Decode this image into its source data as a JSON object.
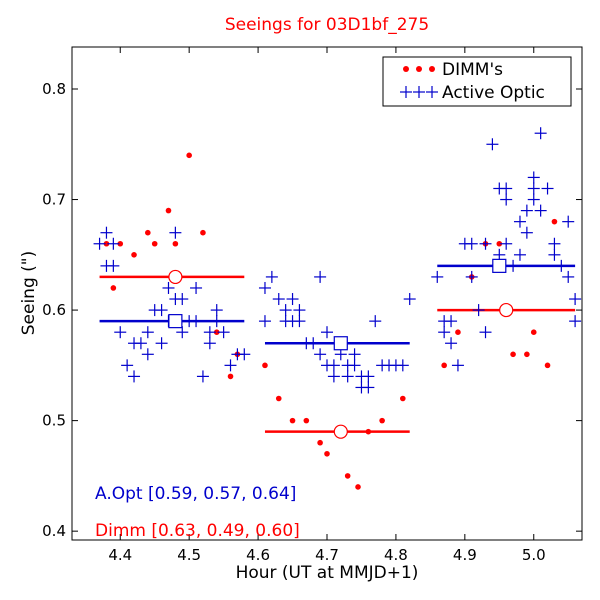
{
  "chart_data": {
    "type": "scatter",
    "title": "Seeings for 03D1bf_275",
    "xlabel": "Hour (UT at MMJD+1)",
    "ylabel": "Seeing (\")",
    "xlim": [
      4.33,
      5.07
    ],
    "ylim": [
      0.392,
      0.838
    ],
    "xticks": [
      "4.4",
      "4.5",
      "4.6",
      "4.7",
      "4.8",
      "4.9",
      "5.0"
    ],
    "xtick_values": [
      4.4,
      4.5,
      4.6,
      4.7,
      4.8,
      4.9,
      5.0
    ],
    "yticks": [
      "0.4",
      "0.5",
      "0.6",
      "0.7",
      "0.8"
    ],
    "ytick_values": [
      0.4,
      0.5,
      0.6,
      0.7,
      0.8
    ],
    "grid": false,
    "legend_position": "top-right",
    "colors": {
      "dimm": "#ff0000",
      "active_optic": "#0000cc",
      "title": "#ff0000"
    },
    "series": [
      {
        "name": "DIMM's",
        "marker": "dot",
        "color": "#ff0000",
        "points": [
          [
            4.38,
            0.66
          ],
          [
            4.39,
            0.62
          ],
          [
            4.4,
            0.66
          ],
          [
            4.42,
            0.65
          ],
          [
            4.44,
            0.67
          ],
          [
            4.45,
            0.66
          ],
          [
            4.47,
            0.69
          ],
          [
            4.48,
            0.66
          ],
          [
            4.5,
            0.74
          ],
          [
            4.52,
            0.67
          ],
          [
            4.54,
            0.58
          ],
          [
            4.56,
            0.54
          ],
          [
            4.57,
            0.56
          ],
          [
            4.61,
            0.55
          ],
          [
            4.63,
            0.52
          ],
          [
            4.65,
            0.5
          ],
          [
            4.67,
            0.5
          ],
          [
            4.69,
            0.48
          ],
          [
            4.7,
            0.47
          ],
          [
            4.73,
            0.45
          ],
          [
            4.745,
            0.44
          ],
          [
            4.76,
            0.49
          ],
          [
            4.78,
            0.5
          ],
          [
            4.81,
            0.52
          ],
          [
            4.87,
            0.55
          ],
          [
            4.89,
            0.58
          ],
          [
            4.91,
            0.63
          ],
          [
            4.93,
            0.66
          ],
          [
            4.95,
            0.66
          ],
          [
            4.97,
            0.56
          ],
          [
            4.99,
            0.56
          ],
          [
            5.0,
            0.58
          ],
          [
            5.02,
            0.55
          ],
          [
            5.03,
            0.68
          ]
        ]
      },
      {
        "name": "Active Optic",
        "marker": "plus",
        "color": "#0000cc",
        "points": [
          [
            4.37,
            0.66
          ],
          [
            4.38,
            0.67
          ],
          [
            4.38,
            0.64
          ],
          [
            4.39,
            0.66
          ],
          [
            4.39,
            0.64
          ],
          [
            4.4,
            0.58
          ],
          [
            4.41,
            0.55
          ],
          [
            4.42,
            0.57
          ],
          [
            4.42,
            0.54
          ],
          [
            4.43,
            0.57
          ],
          [
            4.44,
            0.56
          ],
          [
            4.44,
            0.58
          ],
          [
            4.45,
            0.6
          ],
          [
            4.46,
            0.6
          ],
          [
            4.46,
            0.57
          ],
          [
            4.47,
            0.59
          ],
          [
            4.47,
            0.62
          ],
          [
            4.48,
            0.61
          ],
          [
            4.48,
            0.67
          ],
          [
            4.49,
            0.58
          ],
          [
            4.49,
            0.61
          ],
          [
            4.5,
            0.59
          ],
          [
            4.51,
            0.62
          ],
          [
            4.51,
            0.59
          ],
          [
            4.52,
            0.54
          ],
          [
            4.53,
            0.58
          ],
          [
            4.53,
            0.57
          ],
          [
            4.54,
            0.6
          ],
          [
            4.54,
            0.59
          ],
          [
            4.55,
            0.58
          ],
          [
            4.56,
            0.55
          ],
          [
            4.57,
            0.56
          ],
          [
            4.58,
            0.56
          ],
          [
            4.61,
            0.62
          ],
          [
            4.62,
            0.63
          ],
          [
            4.61,
            0.59
          ],
          [
            4.63,
            0.61
          ],
          [
            4.64,
            0.6
          ],
          [
            4.64,
            0.59
          ],
          [
            4.65,
            0.59
          ],
          [
            4.65,
            0.61
          ],
          [
            4.66,
            0.6
          ],
          [
            4.66,
            0.59
          ],
          [
            4.67,
            0.57
          ],
          [
            4.68,
            0.57
          ],
          [
            4.69,
            0.56
          ],
          [
            4.69,
            0.63
          ],
          [
            4.7,
            0.55
          ],
          [
            4.7,
            0.58
          ],
          [
            4.71,
            0.54
          ],
          [
            4.71,
            0.55
          ],
          [
            4.72,
            0.56
          ],
          [
            4.73,
            0.54
          ],
          [
            4.73,
            0.55
          ],
          [
            4.74,
            0.55
          ],
          [
            4.74,
            0.56
          ],
          [
            4.75,
            0.54
          ],
          [
            4.75,
            0.53
          ],
          [
            4.76,
            0.54
          ],
          [
            4.76,
            0.53
          ],
          [
            4.77,
            0.59
          ],
          [
            4.78,
            0.55
          ],
          [
            4.79,
            0.55
          ],
          [
            4.8,
            0.55
          ],
          [
            4.81,
            0.55
          ],
          [
            4.82,
            0.61
          ],
          [
            4.86,
            0.63
          ],
          [
            4.87,
            0.59
          ],
          [
            4.87,
            0.58
          ],
          [
            4.88,
            0.59
          ],
          [
            4.88,
            0.57
          ],
          [
            4.89,
            0.55
          ],
          [
            4.9,
            0.66
          ],
          [
            4.91,
            0.66
          ],
          [
            4.91,
            0.63
          ],
          [
            4.92,
            0.6
          ],
          [
            4.93,
            0.58
          ],
          [
            4.93,
            0.66
          ],
          [
            4.94,
            0.75
          ],
          [
            4.95,
            0.65
          ],
          [
            4.95,
            0.71
          ],
          [
            4.96,
            0.71
          ],
          [
            4.96,
            0.7
          ],
          [
            4.96,
            0.66
          ],
          [
            4.97,
            0.64
          ],
          [
            4.98,
            0.68
          ],
          [
            4.98,
            0.65
          ],
          [
            4.99,
            0.67
          ],
          [
            4.99,
            0.69
          ],
          [
            5.0,
            0.72
          ],
          [
            5.0,
            0.7
          ],
          [
            5.0,
            0.71
          ],
          [
            5.01,
            0.76
          ],
          [
            5.02,
            0.71
          ],
          [
            5.01,
            0.69
          ],
          [
            5.03,
            0.66
          ],
          [
            5.03,
            0.65
          ],
          [
            5.04,
            0.64
          ],
          [
            5.05,
            0.68
          ],
          [
            5.05,
            0.63
          ],
          [
            5.06,
            0.61
          ],
          [
            5.06,
            0.59
          ]
        ]
      }
    ],
    "segments": [
      {
        "series": "Active Optic",
        "x0": 4.37,
        "x1": 4.58,
        "y": 0.59,
        "marker_x": 4.48
      },
      {
        "series": "Active Optic",
        "x0": 4.61,
        "x1": 4.82,
        "y": 0.57,
        "marker_x": 4.72
      },
      {
        "series": "Active Optic",
        "x0": 4.86,
        "x1": 5.06,
        "y": 0.64,
        "marker_x": 4.95
      },
      {
        "series": "DIMM's",
        "x0": 4.37,
        "x1": 4.58,
        "y": 0.63,
        "marker_x": 4.48
      },
      {
        "series": "DIMM's",
        "x0": 4.61,
        "x1": 4.82,
        "y": 0.49,
        "marker_x": 4.72
      },
      {
        "series": "DIMM's",
        "x0": 4.86,
        "x1": 5.06,
        "y": 0.6,
        "marker_x": 4.96
      }
    ],
    "annotations": [
      {
        "text": "A.Opt [0.59, 0.57, 0.64]",
        "color": "#0000cc",
        "position": "lower-left"
      },
      {
        "text": "Dimm [0.63, 0.49, 0.60]",
        "color": "#ff0000",
        "position": "bottom-left"
      }
    ]
  }
}
